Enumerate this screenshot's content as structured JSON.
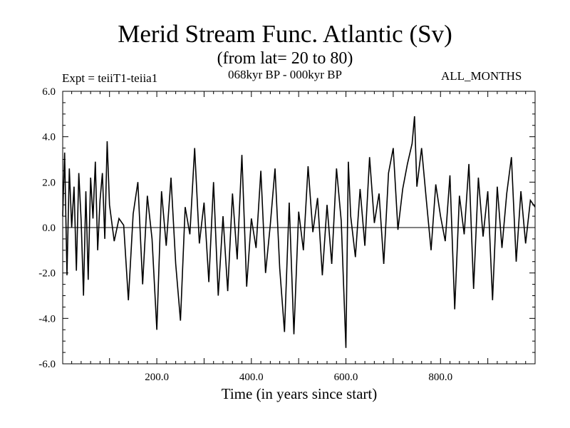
{
  "header": {
    "title": "Merid Stream Func. Atlantic (Sv)",
    "subtitle": "(from lat= 20 to 80)",
    "left_label": "Expt = teiiT1-teiia1",
    "center_label": "068kyr BP - 000kyr BP",
    "right_label": "ALL_MONTHS"
  },
  "chart_data": {
    "type": "line",
    "title": "Merid Stream Func. Atlantic (Sv)",
    "xlabel": "Time (in years since start)",
    "ylabel": "",
    "xlim": [
      1,
      1000
    ],
    "ylim": [
      -6.0,
      6.0
    ],
    "x_ticks": [
      200,
      400,
      600,
      800
    ],
    "x_tick_labels": [
      "200.0",
      "400.0",
      "600.0",
      "800.0"
    ],
    "y_ticks": [
      -6,
      -4,
      -2,
      0,
      2,
      4,
      6
    ],
    "y_tick_labels": [
      "-6.0",
      "-4.0",
      "-2.0",
      "0.0",
      "2.0",
      "4.0",
      "6.0"
    ],
    "zero_line": true,
    "grid": false,
    "series": [
      {
        "color": "#000000",
        "x": [
          1,
          5,
          10,
          15,
          20,
          25,
          30,
          35,
          40,
          45,
          50,
          55,
          60,
          65,
          70,
          75,
          80,
          85,
          90,
          95,
          100,
          110,
          120,
          130,
          140,
          150,
          160,
          170,
          180,
          190,
          200,
          210,
          220,
          230,
          240,
          250,
          260,
          270,
          280,
          290,
          300,
          310,
          320,
          330,
          340,
          350,
          360,
          370,
          380,
          390,
          400,
          410,
          420,
          430,
          440,
          450,
          460,
          470,
          480,
          490,
          500,
          510,
          520,
          530,
          540,
          550,
          560,
          570,
          580,
          590,
          600,
          605,
          610,
          620,
          630,
          640,
          650,
          660,
          670,
          680,
          690,
          700,
          710,
          720,
          730,
          740,
          745,
          750,
          760,
          770,
          780,
          790,
          800,
          810,
          820,
          830,
          840,
          850,
          860,
          870,
          880,
          890,
          900,
          910,
          920,
          930,
          940,
          950,
          960,
          970,
          980,
          990,
          1000
        ],
        "y": [
          0.5,
          3.3,
          -2.1,
          2.6,
          0.0,
          1.8,
          -1.9,
          2.4,
          0.3,
          -3.0,
          1.6,
          -2.3,
          2.2,
          0.4,
          2.9,
          -1.0,
          1.2,
          2.4,
          -0.5,
          3.8,
          1.0,
          -0.6,
          0.4,
          0.1,
          -3.2,
          0.6,
          2.0,
          -2.5,
          1.4,
          -0.5,
          -4.5,
          1.6,
          -0.8,
          2.2,
          -1.6,
          -4.1,
          0.9,
          -0.3,
          3.5,
          -0.7,
          1.1,
          -2.4,
          2.0,
          -3.0,
          0.5,
          -2.8,
          1.5,
          -1.4,
          3.2,
          -2.6,
          0.4,
          -0.9,
          2.5,
          -2.0,
          0.1,
          2.6,
          -1.8,
          -4.6,
          1.1,
          -4.7,
          0.7,
          -1.0,
          2.7,
          -0.2,
          1.3,
          -2.1,
          1.0,
          -1.6,
          2.6,
          0.3,
          -5.3,
          2.9,
          0.5,
          -1.3,
          1.7,
          -0.8,
          3.1,
          0.2,
          1.5,
          -1.6,
          2.4,
          3.5,
          -0.1,
          1.7,
          2.8,
          3.7,
          4.9,
          1.8,
          3.5,
          1.2,
          -1.0,
          1.9,
          0.5,
          -0.6,
          2.3,
          -3.6,
          1.4,
          -0.3,
          2.8,
          -2.7,
          2.2,
          -0.4,
          1.6,
          -3.2,
          1.8,
          -0.9,
          1.5,
          3.1,
          -1.5,
          1.6,
          -0.7,
          1.2,
          0.9
        ]
      }
    ]
  }
}
